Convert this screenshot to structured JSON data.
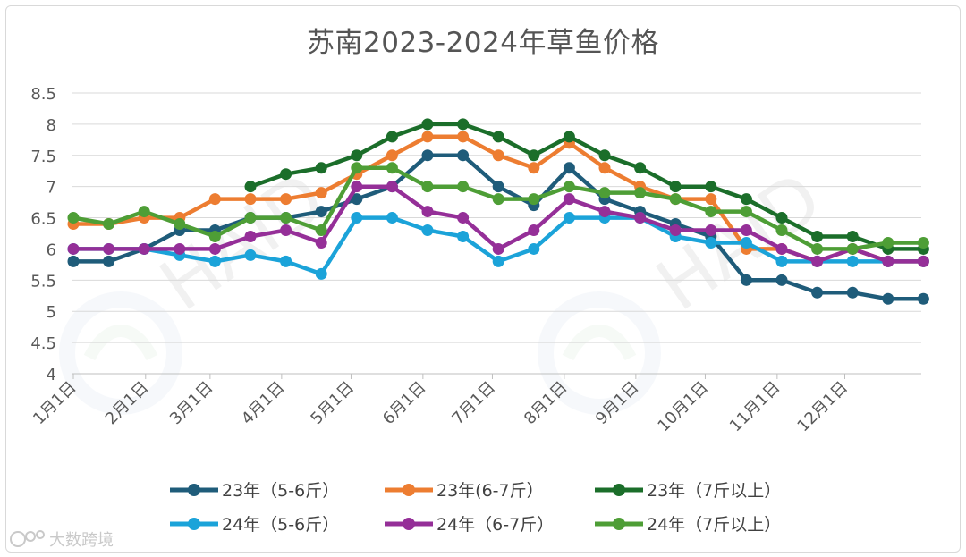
{
  "chart_data": {
    "type": "line",
    "title": "苏南2023-2024年草鱼价格",
    "xlabel": "",
    "ylabel": "",
    "ylim": [
      4,
      8.5
    ],
    "yticks": [
      "4",
      "4.5",
      "5",
      "5.5",
      "6",
      "6.5",
      "7",
      "7.5",
      "8",
      "8.5"
    ],
    "grid": true,
    "legend_position": "bottom",
    "x_tick_labels": [
      "1月1日",
      "2月1日",
      "3月1日",
      "4月1日",
      "5月1日",
      "6月1日",
      "7月1日",
      "8月1日",
      "9月1日",
      "10月1日",
      "11月1日",
      "12月1日"
    ],
    "x_points": 25,
    "series": [
      {
        "name": "23年（5-6斤）",
        "color": "#1f5c7a",
        "values": [
          5.8,
          5.8,
          6.0,
          6.3,
          6.3,
          6.5,
          6.5,
          6.6,
          6.8,
          7.0,
          7.5,
          7.5,
          7.0,
          6.7,
          7.3,
          6.8,
          6.6,
          6.4,
          6.2,
          5.5,
          5.5,
          5.3,
          5.3,
          5.2,
          5.2
        ]
      },
      {
        "name": "23年(6-7斤）",
        "color": "#ed7d31",
        "values": [
          6.4,
          6.4,
          6.5,
          6.5,
          6.8,
          6.8,
          6.8,
          6.9,
          7.2,
          7.5,
          7.8,
          7.8,
          7.5,
          7.3,
          7.7,
          7.3,
          7.0,
          6.8,
          6.8,
          6.0,
          6.0,
          5.8,
          6.0,
          5.8,
          5.8
        ]
      },
      {
        "name": "23年（7斤以上）",
        "color": "#1b6e2a",
        "values": [
          null,
          null,
          null,
          null,
          null,
          7.0,
          7.2,
          7.3,
          7.5,
          7.8,
          8.0,
          8.0,
          7.8,
          7.5,
          7.8,
          7.5,
          7.3,
          7.0,
          7.0,
          6.8,
          6.5,
          6.2,
          6.2,
          6.0,
          6.0
        ]
      },
      {
        "name": "24年（5-6斤）",
        "color": "#1ba3d9",
        "values": [
          6.0,
          6.0,
          6.0,
          5.9,
          5.8,
          5.9,
          5.8,
          5.6,
          6.5,
          6.5,
          6.3,
          6.2,
          5.8,
          6.0,
          6.5,
          6.5,
          6.5,
          6.2,
          6.1,
          6.1,
          5.8,
          5.8,
          5.8,
          5.8,
          5.8
        ]
      },
      {
        "name": "24年（6-7斤）",
        "color": "#952f98",
        "values": [
          6.0,
          6.0,
          6.0,
          6.0,
          6.0,
          6.2,
          6.3,
          6.1,
          7.0,
          7.0,
          6.6,
          6.5,
          6.0,
          6.3,
          6.8,
          6.6,
          6.5,
          6.3,
          6.3,
          6.3,
          6.0,
          5.8,
          6.0,
          5.8,
          5.8
        ]
      },
      {
        "name": "24年（7斤以上）",
        "color": "#4e9e36",
        "values": [
          6.5,
          6.4,
          6.6,
          6.4,
          6.2,
          6.5,
          6.5,
          6.3,
          7.3,
          7.3,
          7.0,
          7.0,
          6.8,
          6.8,
          7.0,
          6.9,
          6.9,
          6.8,
          6.6,
          6.6,
          6.3,
          6.0,
          6.0,
          6.1,
          6.1
        ]
      }
    ]
  },
  "watermark": {
    "brand_text": "大数跨境",
    "logo_letters": "HAID"
  }
}
